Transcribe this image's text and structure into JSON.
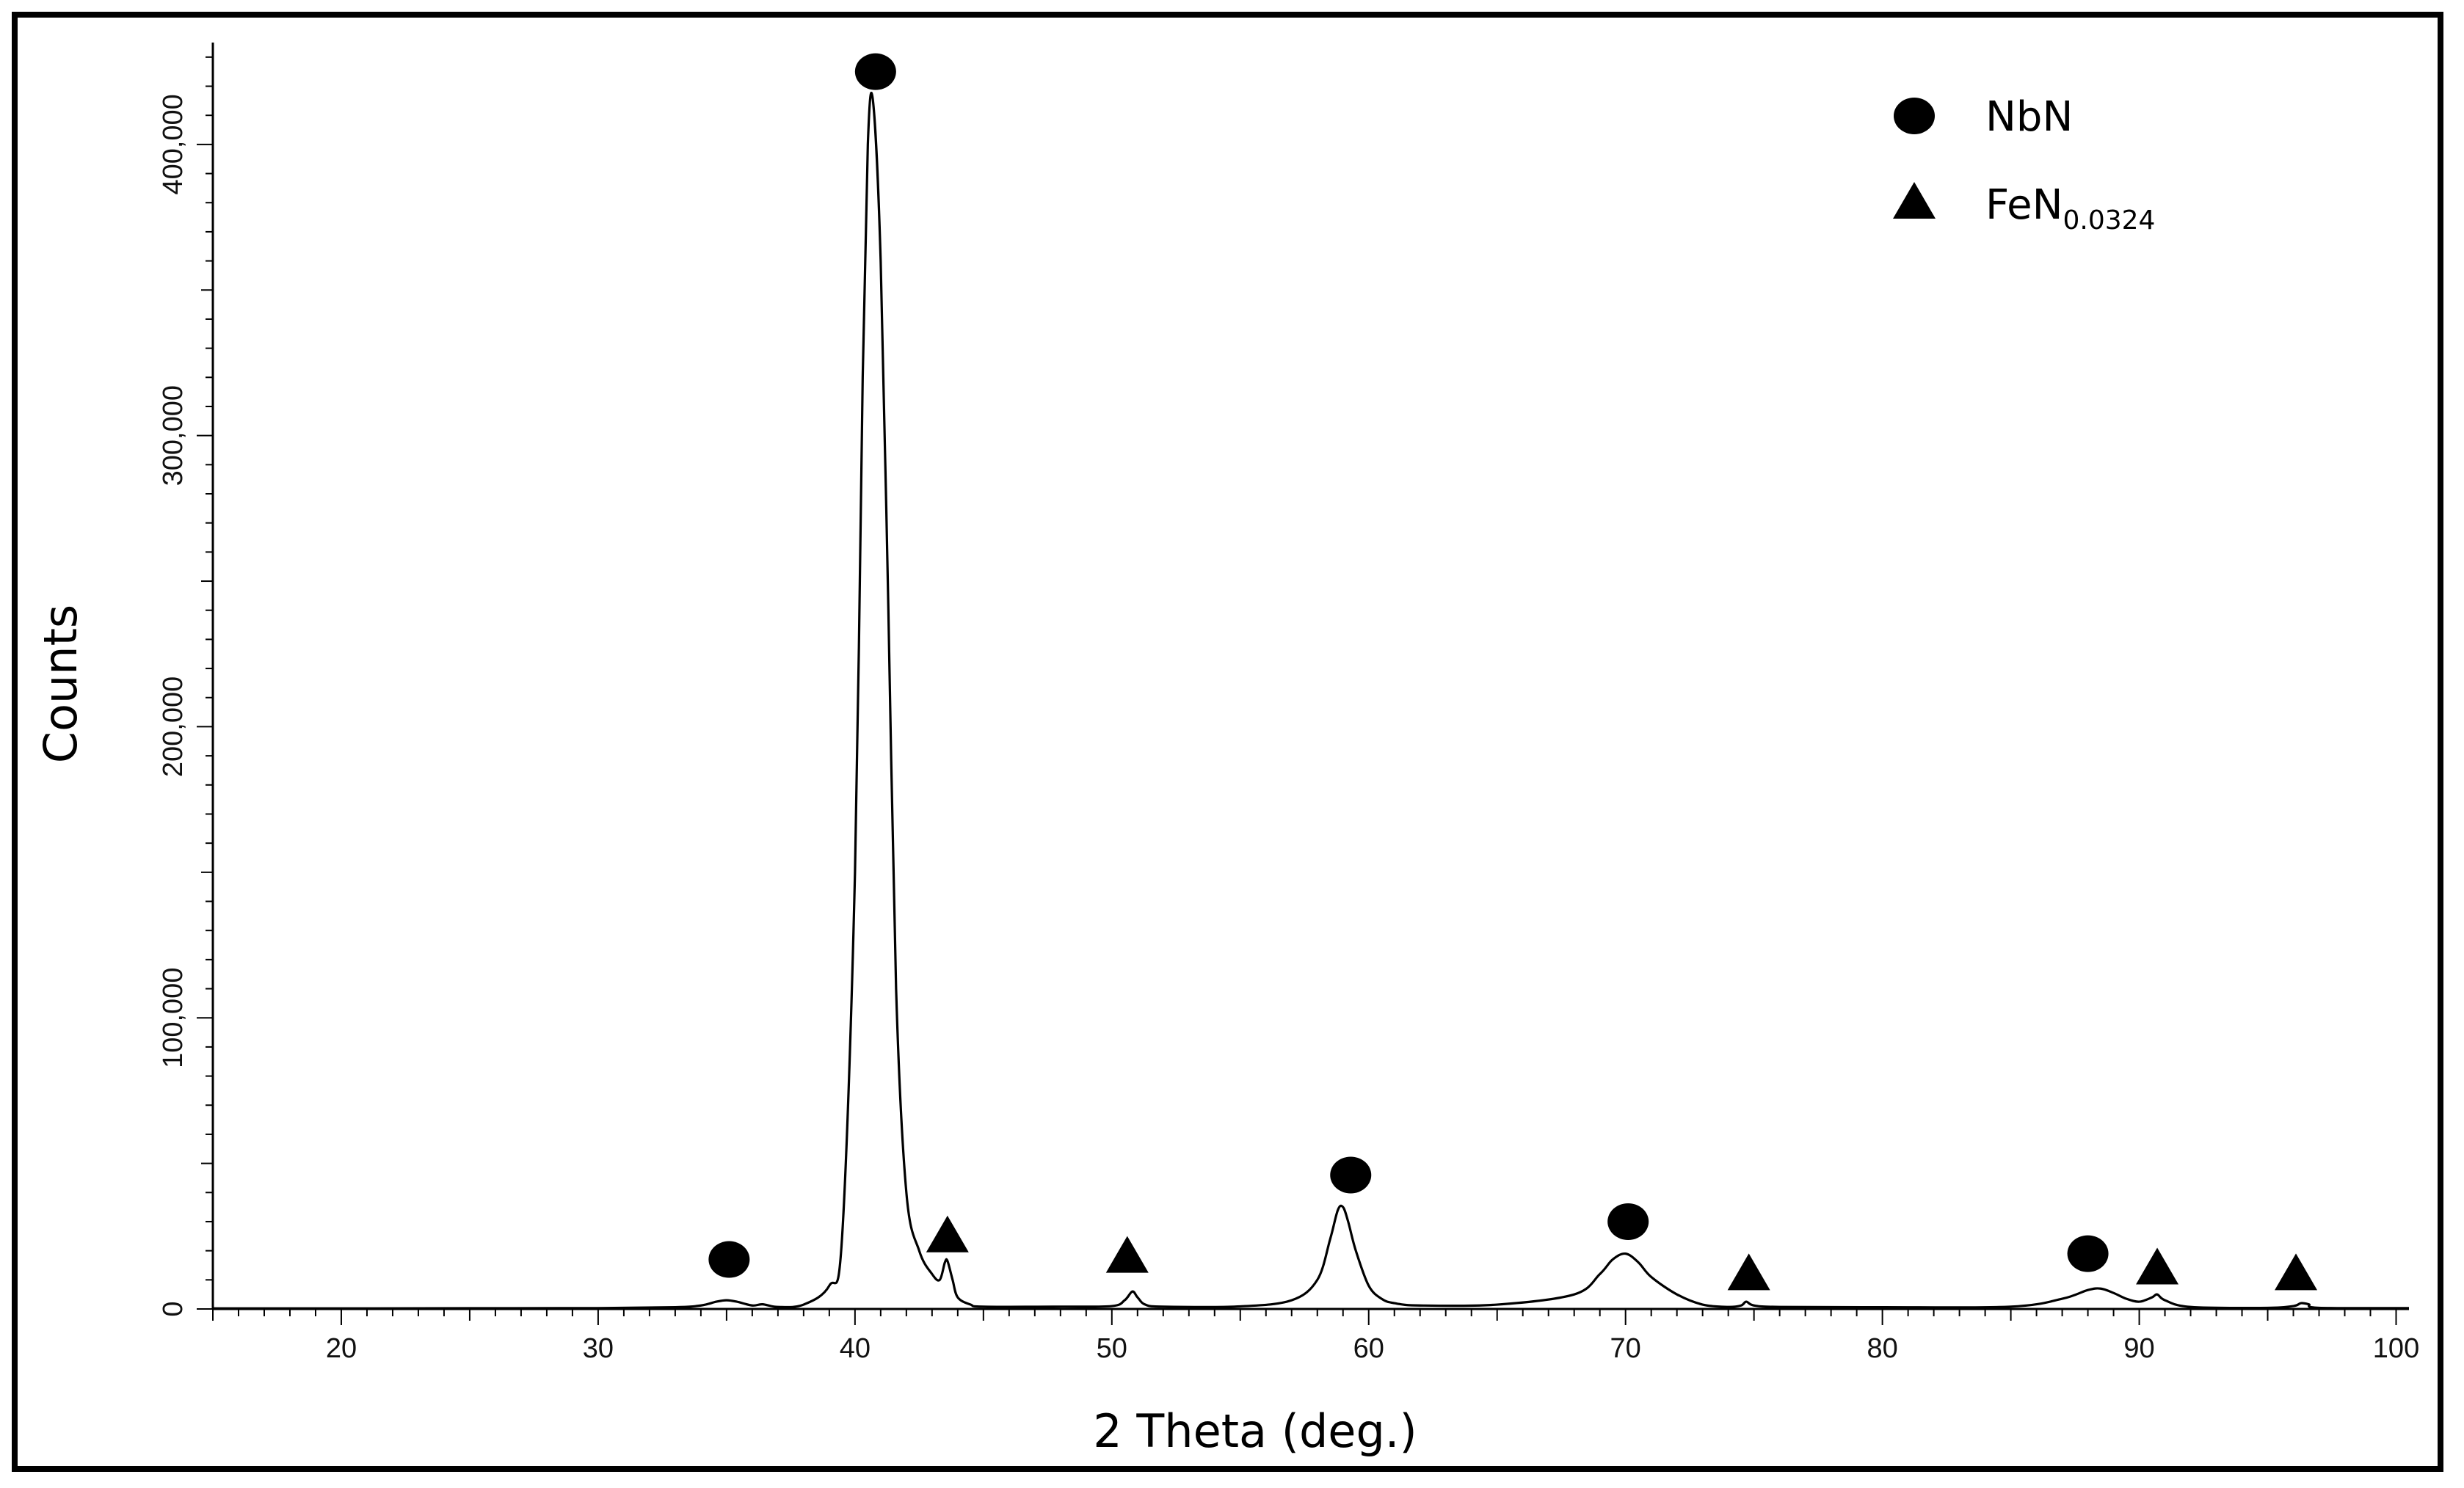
{
  "chart_data": {
    "type": "line",
    "xlabel": "2 Theta (deg.)",
    "ylabel": "Counts",
    "xlim": [
      15,
      100.5
    ],
    "ylim": [
      0,
      435000
    ],
    "x_ticks": [
      20,
      30,
      40,
      50,
      60,
      70,
      80,
      90,
      100
    ],
    "y_ticks": [
      0,
      100000,
      200000,
      300000,
      400000
    ],
    "y_tick_labels": [
      "0",
      "100,000",
      "200,000",
      "300,000",
      "400,000"
    ],
    "grid": false,
    "legend_position": "top-right",
    "series": [
      {
        "x": [
          15,
          20,
          25,
          30,
          33,
          34,
          34.6,
          35,
          35.4,
          36,
          36.4,
          37,
          38,
          39,
          39.5,
          40,
          40.3,
          40.5,
          40.7,
          41,
          41.3,
          41.6,
          42,
          42.5,
          43,
          43.3,
          43.5,
          43.6,
          43.8,
          44,
          44.5,
          45,
          48,
          50,
          50.5,
          50.8,
          51,
          51.3,
          52,
          55,
          57,
          58,
          58.5,
          58.8,
          59,
          59.2,
          59.5,
          60,
          60.5,
          61,
          62,
          65,
          68,
          69,
          69.5,
          70,
          70.5,
          71,
          72,
          73,
          74,
          74.5,
          74.7,
          75,
          76,
          80,
          85,
          87,
          88,
          88.5,
          89,
          89.5,
          90,
          90.5,
          90.7,
          91,
          92,
          95,
          96,
          96.3,
          96.6,
          97,
          100.5
        ],
        "y": [
          200,
          200,
          250,
          300,
          600,
          1200,
          2500,
          3000,
          2500,
          1200,
          1600,
          700,
          1500,
          8000,
          25000,
          150000,
          320000,
          400000,
          415000,
          360000,
          240000,
          110000,
          40000,
          20000,
          12000,
          10000,
          16000,
          16500,
          10000,
          4000,
          1500,
          800,
          800,
          1000,
          3000,
          6000,
          4000,
          1500,
          800,
          900,
          3000,
          10000,
          24000,
          34000,
          35000,
          30000,
          20000,
          8000,
          3500,
          2000,
          1200,
          1500,
          5000,
          12000,
          17000,
          19000,
          16000,
          11000,
          5000,
          1500,
          700,
          1200,
          2500,
          1200,
          700,
          600,
          800,
          3500,
          6500,
          7000,
          5500,
          3500,
          2500,
          4000,
          5000,
          3000,
          700,
          400,
          1000,
          2000,
          1600,
          400,
          300
        ]
      }
    ],
    "markers": [
      {
        "phase": "NbN",
        "shape": "circle",
        "x": 35.1,
        "y_level": 17000
      },
      {
        "phase": "NbN",
        "shape": "circle",
        "x": 40.8,
        "y_level": 425000
      },
      {
        "phase": "FeN0.0324",
        "shape": "triangle",
        "x": 43.6,
        "y_level": 25000
      },
      {
        "phase": "FeN0.0324",
        "shape": "triangle",
        "x": 50.6,
        "y_level": 18000
      },
      {
        "phase": "NbN",
        "shape": "circle",
        "x": 59.3,
        "y_level": 46000
      },
      {
        "phase": "NbN",
        "shape": "circle",
        "x": 70.1,
        "y_level": 30000
      },
      {
        "phase": "FeN0.0324",
        "shape": "triangle",
        "x": 74.8,
        "y_level": 12000
      },
      {
        "phase": "NbN",
        "shape": "circle",
        "x": 88.0,
        "y_level": 19000
      },
      {
        "phase": "FeN0.0324",
        "shape": "triangle",
        "x": 90.7,
        "y_level": 14000
      },
      {
        "phase": "FeN0.0324",
        "shape": "triangle",
        "x": 96.1,
        "y_level": 12000
      }
    ],
    "legend": [
      {
        "shape": "circle",
        "label": "NbN",
        "subscript": ""
      },
      {
        "shape": "triangle",
        "label": "FeN",
        "subscript": "0.0324"
      }
    ],
    "colors": {
      "line": "#000000",
      "markers": "#000000",
      "border": "#000000"
    }
  }
}
